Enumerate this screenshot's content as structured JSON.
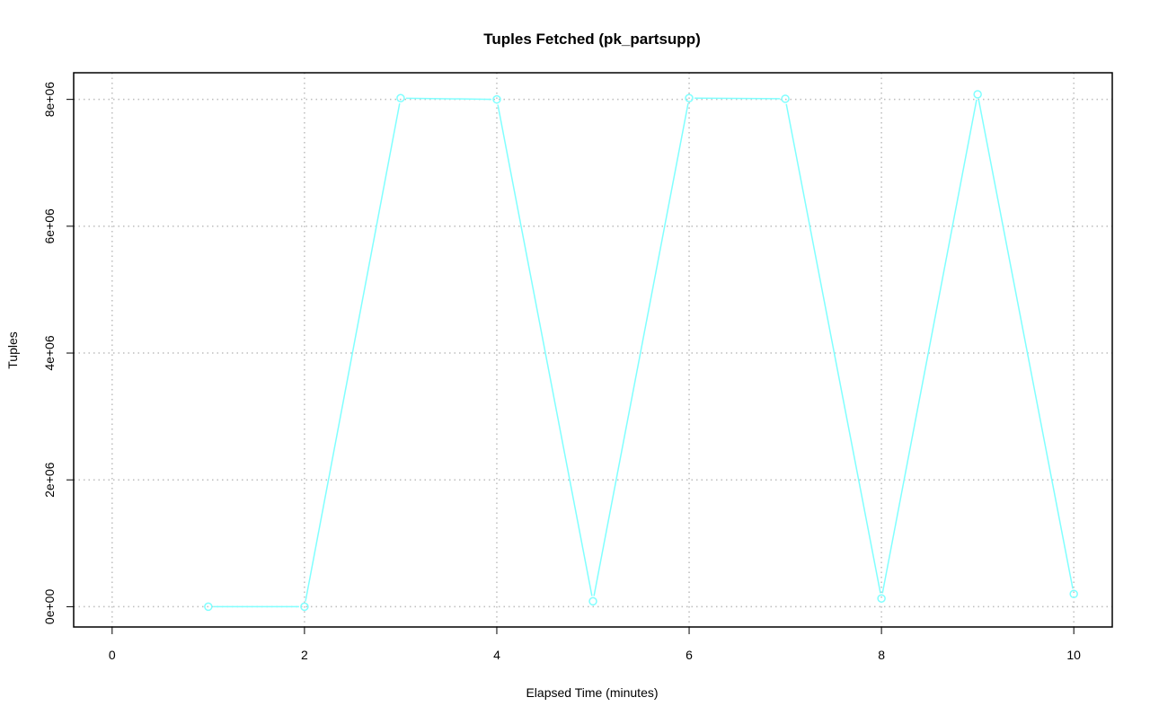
{
  "chart_data": {
    "type": "line",
    "title": "Tuples Fetched (pk_partsupp)",
    "xlabel": "Elapsed Time (minutes)",
    "ylabel": "Tuples",
    "xlim": [
      -0.4,
      10.4
    ],
    "ylim": [
      -320000,
      8420000
    ],
    "xticks": [
      0,
      2,
      4,
      6,
      8,
      10
    ],
    "xtick_labels": [
      "0",
      "2",
      "4",
      "6",
      "8",
      "10"
    ],
    "yticks": [
      0,
      2000000,
      4000000,
      6000000,
      8000000
    ],
    "ytick_labels": [
      "0e+00",
      "2e+06",
      "4e+06",
      "6e+06",
      "8e+06"
    ],
    "grid": true,
    "series": [
      {
        "color": "#80ffff",
        "markers": "open-circle",
        "x": [
          1,
          2,
          3,
          4,
          5,
          6,
          7,
          8,
          9,
          10
        ],
        "y": [
          0,
          0,
          8020000,
          8000000,
          85000,
          8020000,
          8010000,
          130000,
          8080000,
          200000
        ]
      }
    ]
  }
}
